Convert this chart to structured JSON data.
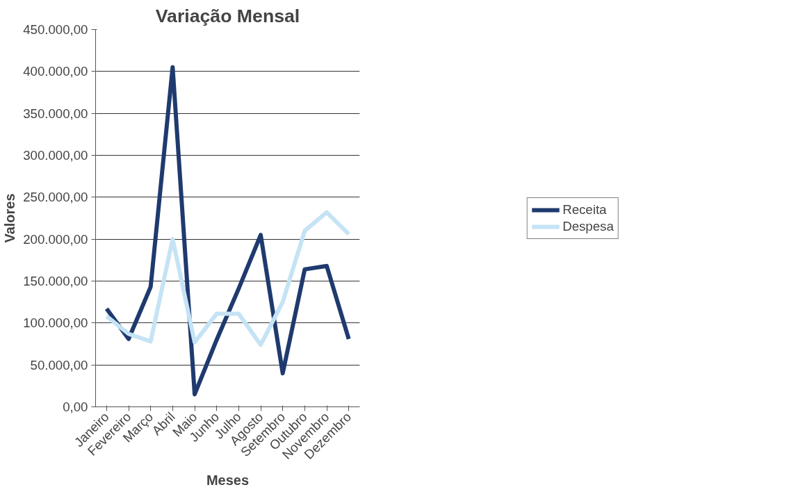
{
  "chart_data": {
    "type": "line",
    "title": "Variação Mensal",
    "xlabel": "Meses",
    "ylabel": "Valores",
    "categories": [
      "Janeiro",
      "Fevereiro",
      "Março",
      "Abril",
      "Maio",
      "Junho",
      "Julho",
      "Agosto",
      "Setembro",
      "Outubro",
      "Novembro",
      "Dezembro"
    ],
    "series": [
      {
        "name": "Receita",
        "color": "#1f3a6e",
        "values": [
          117000,
          81000,
          143000,
          405000,
          15000,
          80000,
          141000,
          205000,
          40000,
          164000,
          168000,
          81000
        ]
      },
      {
        "name": "Despesa",
        "color": "#c5e3f5",
        "values": [
          108000,
          87000,
          78000,
          200000,
          77000,
          111000,
          111000,
          74000,
          125000,
          210000,
          232000,
          206000
        ]
      }
    ],
    "ylim": [
      0,
      450000
    ],
    "yticks": [
      {
        "value": 0,
        "label": "0,00"
      },
      {
        "value": 50000,
        "label": "50.000,00"
      },
      {
        "value": 100000,
        "label": "100.000,00"
      },
      {
        "value": 150000,
        "label": "150.000,00"
      },
      {
        "value": 200000,
        "label": "200.000,00"
      },
      {
        "value": 250000,
        "label": "250.000,00"
      },
      {
        "value": 300000,
        "label": "300.000,00"
      },
      {
        "value": 350000,
        "label": "350.000,00"
      },
      {
        "value": 400000,
        "label": "400.000,00"
      },
      {
        "value": 450000,
        "label": "450.000,00"
      }
    ],
    "grid": "y",
    "legend": "right",
    "marker": "none",
    "line_style": "solid"
  }
}
